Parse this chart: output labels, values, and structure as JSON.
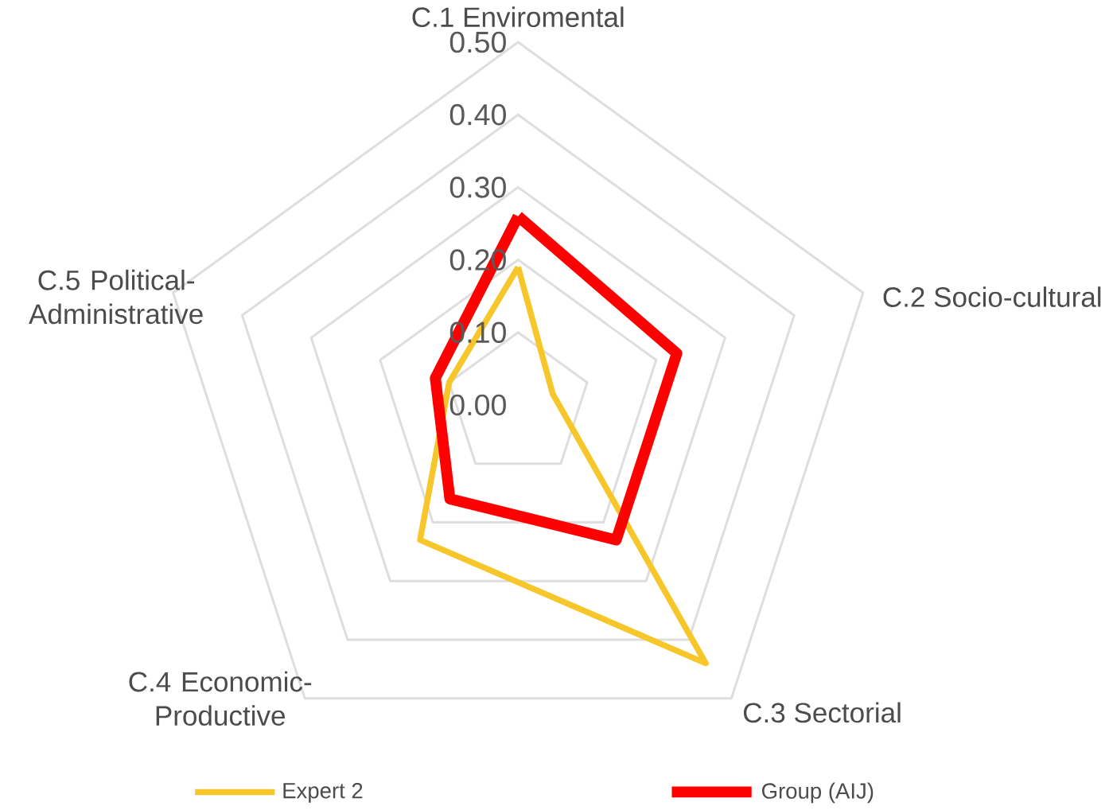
{
  "chart_data": {
    "type": "radar",
    "categories": [
      "C.1 Enviromental",
      "C.2 Socio-cultural",
      "C.3 Sectorial",
      "C.4 Economic-Productive",
      "C.5 Political-Administrative"
    ],
    "series": [
      {
        "name": "Expert 2",
        "color": "#f6c62b",
        "values": [
          0.19,
          0.05,
          0.44,
          0.23,
          0.1
        ]
      },
      {
        "name": "Group (AIJ)",
        "color": "#ff0000",
        "values": [
          0.26,
          0.23,
          0.23,
          0.16,
          0.12
        ]
      }
    ],
    "ylim": [
      0,
      0.5
    ],
    "yticks": [
      {
        "value": 0,
        "label": "0.00"
      },
      {
        "value": 0.1,
        "label": "0.10"
      },
      {
        "value": 0.2,
        "label": "0.20"
      },
      {
        "value": 0.3,
        "label": "0.30"
      },
      {
        "value": 0.4,
        "label": "0.40"
      },
      {
        "value": 0.5,
        "label": "0.50"
      }
    ],
    "grid": true,
    "legend": "bottom"
  }
}
